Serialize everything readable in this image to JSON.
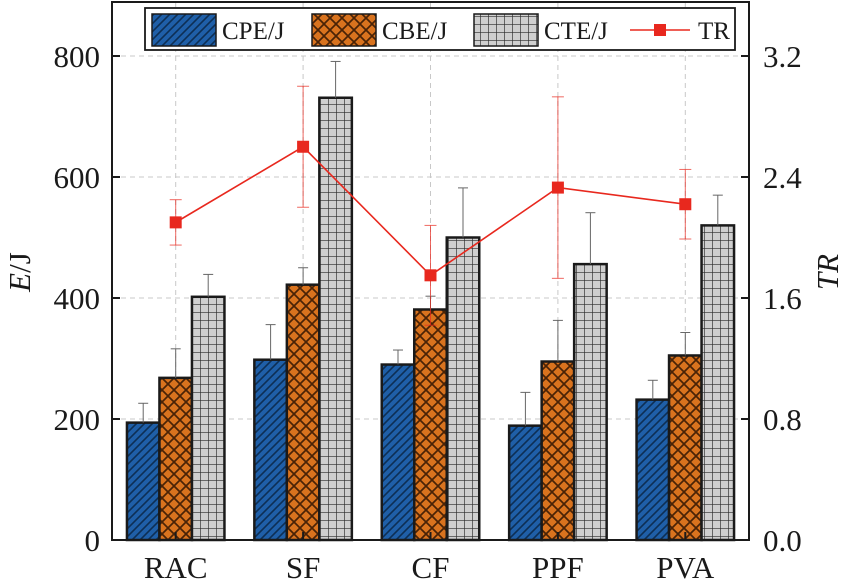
{
  "chart_data": {
    "type": "bar",
    "categories": [
      "RAC",
      "SF",
      "CF",
      "PPF",
      "PVA"
    ],
    "series": [
      {
        "name": "CPE/J",
        "color": "#1f5fa8",
        "pattern": "diagonal-hatch",
        "values": [
          194,
          298,
          290,
          189,
          232
        ],
        "errors": [
          32,
          58,
          24,
          55,
          32
        ]
      },
      {
        "name": "CBE/J",
        "color": "#d9731e",
        "pattern": "cross-hatch",
        "values": [
          268,
          422,
          381,
          295,
          305
        ],
        "errors": [
          48,
          28,
          22,
          68,
          38
        ]
      },
      {
        "name": "CTE/J",
        "color": "#c9c9c9",
        "pattern": "grid",
        "values": [
          402,
          731,
          500,
          456,
          520
        ],
        "errors": [
          37,
          60,
          82,
          85,
          50
        ]
      }
    ],
    "line_series": {
      "name": "TR",
      "color": "#e8281e",
      "axis": "right",
      "values": [
        2.1,
        2.6,
        1.75,
        2.33,
        2.22
      ],
      "errors": [
        0.15,
        0.4,
        0.33,
        0.6,
        0.23
      ]
    },
    "ylabel_left": "E/J",
    "ylabel_right": "TR",
    "ylim_left": [
      0,
      800
    ],
    "ylim_right": [
      0,
      3.2
    ],
    "yticks_left": [
      "0",
      "200",
      "400",
      "600",
      "800"
    ],
    "yticks_right": [
      "0.0",
      "0.8",
      "1.6",
      "2.4",
      "3.2"
    ],
    "yticks_left_values": [
      0,
      200,
      400,
      600,
      800
    ],
    "yticks_right_values": [
      0,
      0.8,
      1.6,
      2.4,
      3.2
    ],
    "grid": true,
    "legend_position": "top"
  }
}
